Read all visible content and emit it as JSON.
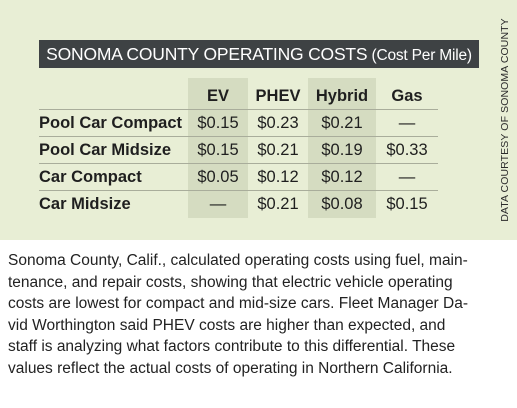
{
  "table": {
    "title": "SONOMA COUNTY OPERATING COSTS",
    "subtitle": " (Cost Per Mile)",
    "columns": [
      "",
      "EV",
      "PHEV",
      "Hybrid",
      "Gas"
    ],
    "rows": [
      {
        "label": "Pool Car Compact",
        "values": [
          "$0.15",
          "$0.23",
          "$0.21",
          "—"
        ]
      },
      {
        "label": "Pool Car Midsize",
        "values": [
          "$0.15",
          "$0.21",
          "$0.19",
          "$0.33"
        ]
      },
      {
        "label": "Car Compact",
        "values": [
          "$0.05",
          "$0.12",
          "$0.12",
          "—"
        ]
      },
      {
        "label": "Car Midsize",
        "values": [
          "—",
          "$0.21",
          "$0.08",
          "$0.15"
        ]
      }
    ]
  },
  "credit": "DATA COURTESY OF SONOMA COUNTY",
  "caption": "Sonoma County, Calif., calculated operating costs using fuel, main-\ntenance, and repair costs, showing that electric vehicle operating\ncosts are lowest for compact and mid-size cars. Fleet Manager Da-\nvid Worthington said PHEV costs are higher than expected, and\nstaff is analyzing what factors contribute to this differential. These\nvalues reflect the actual costs of operating in Northern California.",
  "colors": {
    "panel": "#e8eed5",
    "alt_column": "#d5dcc1",
    "title_bar": "#3e4244"
  }
}
